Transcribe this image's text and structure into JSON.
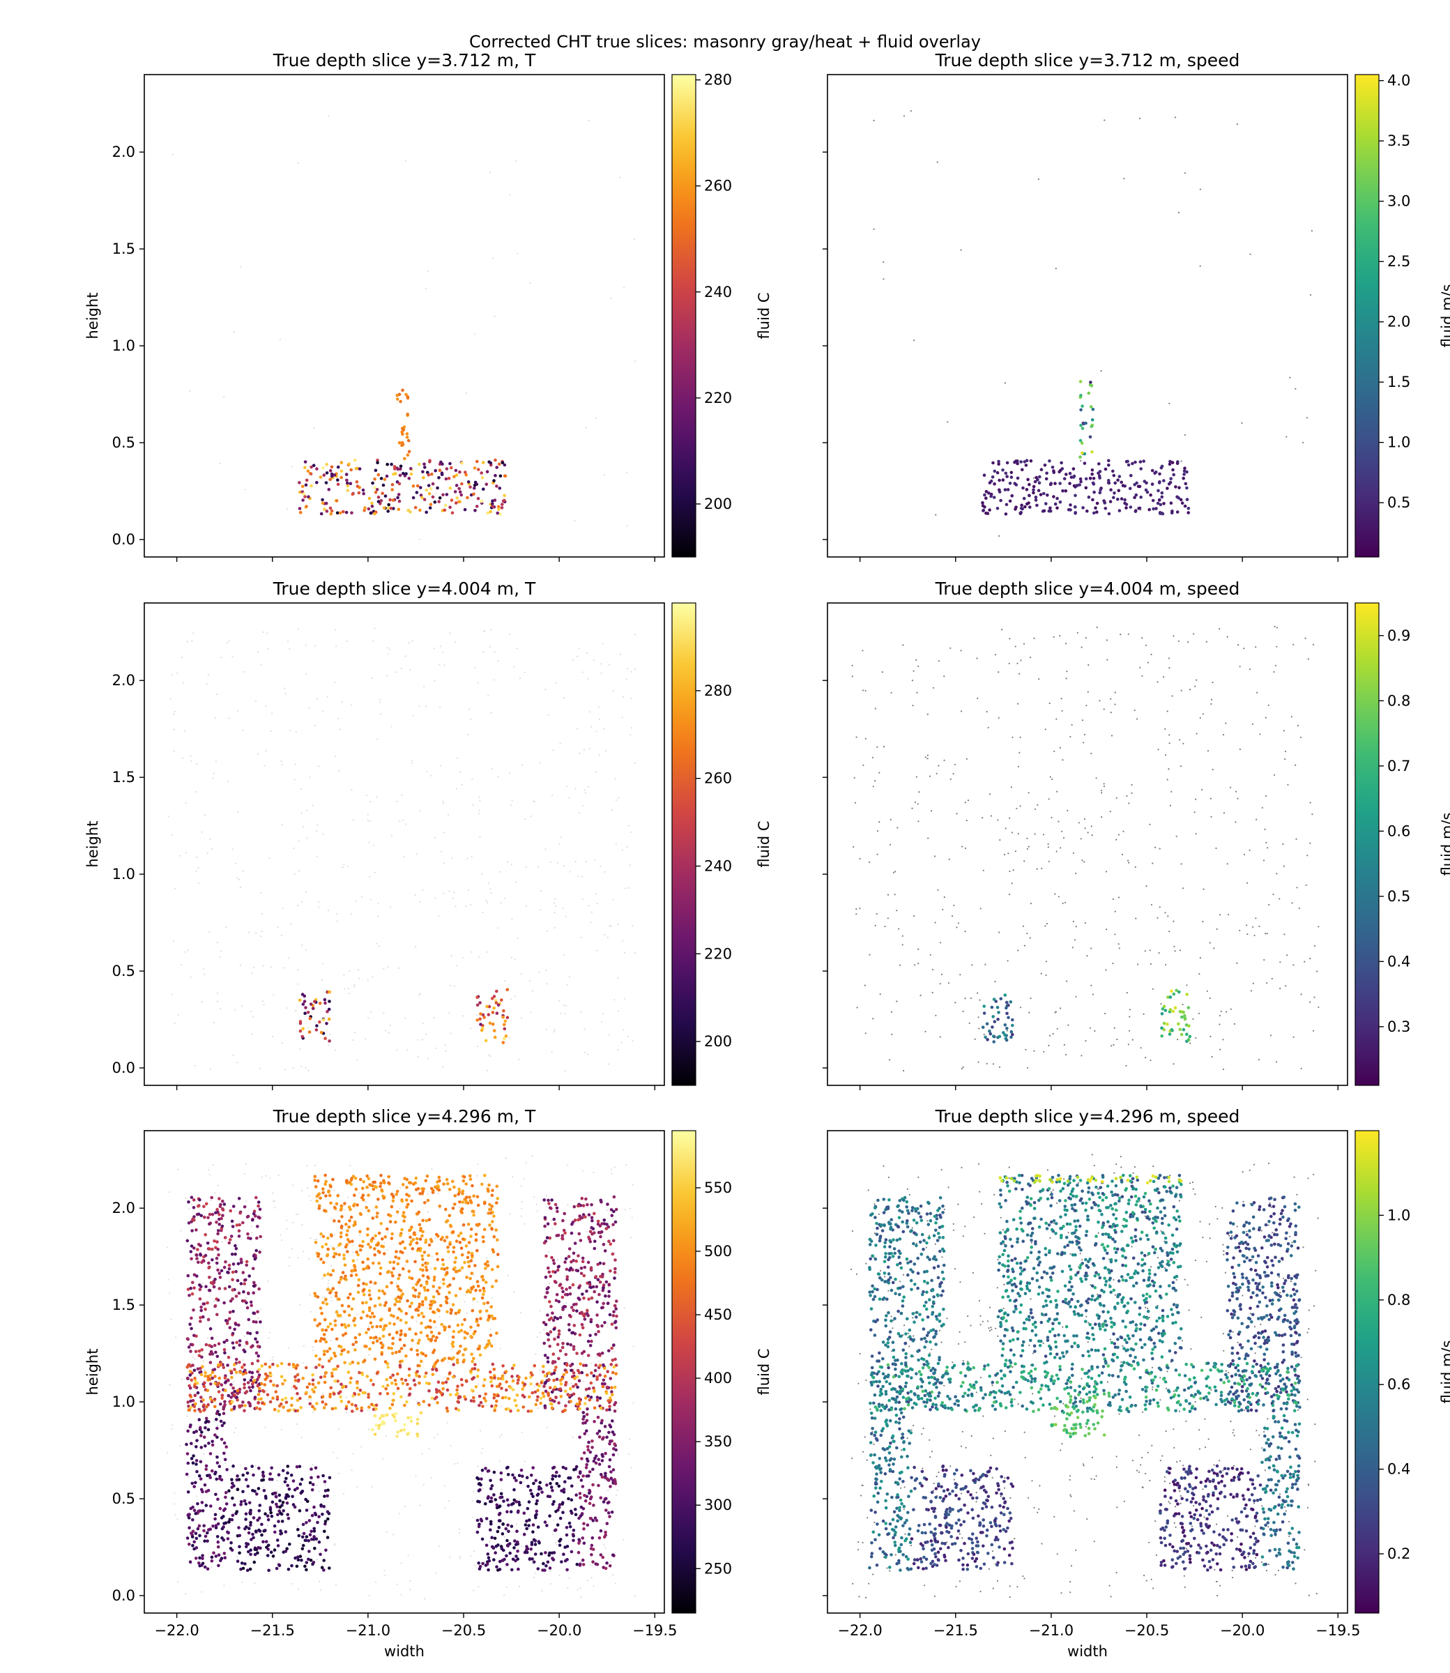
{
  "figure": {
    "suptitle": "Corrected CHT true slices: masonry gray/heat + fluid overlay"
  },
  "chart_data": [
    {
      "type": "scatter",
      "panel": "r0c0",
      "row": 0,
      "col": 0,
      "title": "True depth slice y=3.712 m, T",
      "ylabel": "height",
      "xlabel": "",
      "xlim": [
        -22.17,
        -19.45
      ],
      "ylim": [
        -0.09,
        2.4
      ],
      "xticks": [
        -22.0,
        -21.5,
        -21.0,
        -20.5,
        -20.0,
        -19.5
      ],
      "xtick_labels": [
        "−22.0",
        "−21.5",
        "−21.0",
        "−20.5",
        "−20.0",
        "−19.5"
      ],
      "show_xtick_labels": false,
      "yticks": [
        0.0,
        0.5,
        1.0,
        1.5,
        2.0
      ],
      "ytick_labels": [
        "0.0",
        "0.5",
        "1.0",
        "1.5",
        "2.0"
      ],
      "show_ytick_labels": true,
      "colorbar": {
        "label": "fluid C",
        "colormap": "inferno",
        "range": [
          190,
          281
        ],
        "ticks": [
          200,
          220,
          240,
          260,
          280
        ],
        "tick_labels": [
          "200",
          "220",
          "240",
          "260",
          "280"
        ]
      },
      "grid": false,
      "data_regions": [
        {
          "shape": "rect",
          "x": [
            -21.36,
            -20.28
          ],
          "y": [
            0.13,
            0.41
          ],
          "value_range": [
            195,
            280
          ]
        },
        {
          "shape": "rect",
          "x": [
            -20.85,
            -20.78
          ],
          "y": [
            0.41,
            0.79
          ],
          "value_range": [
            250,
            260
          ]
        }
      ]
    },
    {
      "type": "scatter",
      "panel": "r0c1",
      "row": 0,
      "col": 1,
      "title": "True depth slice y=3.712 m, speed",
      "ylabel": "",
      "xlabel": "",
      "xlim": [
        -22.17,
        -19.45
      ],
      "ylim": [
        -0.09,
        2.4
      ],
      "xticks": [
        -22.0,
        -21.5,
        -21.0,
        -20.5,
        -20.0,
        -19.5
      ],
      "xtick_labels": [
        "−22.0",
        "−21.5",
        "−21.0",
        "−20.5",
        "−20.0",
        "−19.5"
      ],
      "show_xtick_labels": false,
      "yticks": [
        0.0,
        0.5,
        1.0,
        1.5,
        2.0
      ],
      "ytick_labels": [
        "0.0",
        "0.5",
        "1.0",
        "1.5",
        "2.0"
      ],
      "show_ytick_labels": false,
      "colorbar": {
        "label": "fluid m/s",
        "colormap": "viridis",
        "range": [
          0.05,
          4.05
        ],
        "ticks": [
          0.5,
          1.0,
          1.5,
          2.0,
          2.5,
          3.0,
          3.5,
          4.0
        ],
        "tick_labels": [
          "0.5",
          "1.0",
          "1.5",
          "2.0",
          "2.5",
          "3.0",
          "3.5",
          "4.0"
        ]
      },
      "grid": false,
      "data_regions": [
        {
          "shape": "rect",
          "x": [
            -21.36,
            -20.28
          ],
          "y": [
            0.13,
            0.41
          ],
          "value_range": [
            0.2,
            0.6
          ]
        },
        {
          "shape": "rect",
          "x": [
            -20.85,
            -20.78
          ],
          "y": [
            0.41,
            0.82
          ],
          "value_range": [
            0.5,
            4.0
          ]
        }
      ]
    },
    {
      "type": "scatter",
      "panel": "r1c0",
      "row": 1,
      "col": 0,
      "title": "True depth slice y=4.004 m, T",
      "ylabel": "height",
      "xlabel": "",
      "xlim": [
        -22.17,
        -19.45
      ],
      "ylim": [
        -0.09,
        2.4
      ],
      "xticks": [
        -22.0,
        -21.5,
        -21.0,
        -20.5,
        -20.0,
        -19.5
      ],
      "xtick_labels": [
        "−22.0",
        "−21.5",
        "−21.0",
        "−20.5",
        "−20.0",
        "−19.5"
      ],
      "show_xtick_labels": false,
      "yticks": [
        0.0,
        0.5,
        1.0,
        1.5,
        2.0
      ],
      "ytick_labels": [
        "0.0",
        "0.5",
        "1.0",
        "1.5",
        "2.0"
      ],
      "show_ytick_labels": true,
      "colorbar": {
        "label": "fluid C",
        "colormap": "inferno",
        "range": [
          190,
          300
        ],
        "ticks": [
          200,
          220,
          240,
          260,
          280
        ],
        "tick_labels": [
          "200",
          "220",
          "240",
          "260",
          "280"
        ]
      },
      "grid": false,
      "data_regions": [
        {
          "shape": "rect",
          "x": [
            -21.36,
            -21.2
          ],
          "y": [
            0.13,
            0.41
          ],
          "value_range": [
            195,
            295
          ]
        },
        {
          "shape": "rect",
          "x": [
            -20.43,
            -20.27
          ],
          "y": [
            0.13,
            0.41
          ],
          "value_range": [
            225,
            295
          ]
        }
      ]
    },
    {
      "type": "scatter",
      "panel": "r1c1",
      "row": 1,
      "col": 1,
      "title": "True depth slice y=4.004 m, speed",
      "ylabel": "",
      "xlabel": "",
      "xlim": [
        -22.17,
        -19.45
      ],
      "ylim": [
        -0.09,
        2.4
      ],
      "xticks": [
        -22.0,
        -21.5,
        -21.0,
        -20.5,
        -20.0,
        -19.5
      ],
      "xtick_labels": [
        "−22.0",
        "−21.5",
        "−21.0",
        "−20.5",
        "−20.0",
        "−19.5"
      ],
      "show_xtick_labels": false,
      "yticks": [
        0.0,
        0.5,
        1.0,
        1.5,
        2.0
      ],
      "ytick_labels": [
        "0.0",
        "0.5",
        "1.0",
        "1.5",
        "2.0"
      ],
      "show_ytick_labels": false,
      "colorbar": {
        "label": "fluid m/s",
        "colormap": "viridis",
        "range": [
          0.21,
          0.95
        ],
        "ticks": [
          0.3,
          0.4,
          0.5,
          0.6,
          0.7,
          0.8,
          0.9
        ],
        "tick_labels": [
          "0.3",
          "0.4",
          "0.5",
          "0.6",
          "0.7",
          "0.8",
          "0.9"
        ]
      },
      "grid": false,
      "data_regions": [
        {
          "shape": "rect",
          "x": [
            -21.36,
            -21.2
          ],
          "y": [
            0.13,
            0.41
          ],
          "value_range": [
            0.3,
            0.6
          ]
        },
        {
          "shape": "rect",
          "x": [
            -20.43,
            -20.27
          ],
          "y": [
            0.13,
            0.41
          ],
          "value_range": [
            0.6,
            0.93
          ]
        }
      ]
    },
    {
      "type": "scatter",
      "panel": "r2c0",
      "row": 2,
      "col": 0,
      "title": "True depth slice y=4.296 m, T",
      "ylabel": "height",
      "xlabel": "width",
      "xlim": [
        -22.17,
        -19.45
      ],
      "ylim": [
        -0.09,
        2.4
      ],
      "xticks": [
        -22.0,
        -21.5,
        -21.0,
        -20.5,
        -20.0,
        -19.5
      ],
      "xtick_labels": [
        "−22.0",
        "−21.5",
        "−21.0",
        "−20.5",
        "−20.0",
        "−19.5"
      ],
      "show_xtick_labels": true,
      "yticks": [
        0.0,
        0.5,
        1.0,
        1.5,
        2.0
      ],
      "ytick_labels": [
        "0.0",
        "0.5",
        "1.0",
        "1.5",
        "2.0"
      ],
      "show_ytick_labels": true,
      "colorbar": {
        "label": "fluid C",
        "colormap": "inferno",
        "range": [
          215,
          595
        ],
        "ticks": [
          250,
          300,
          350,
          400,
          450,
          500,
          550
        ],
        "tick_labels": [
          "250",
          "300",
          "350",
          "400",
          "450",
          "500",
          "550"
        ]
      },
      "grid": false,
      "data_regions": [
        {
          "shape": "rect",
          "x": [
            -21.95,
            -21.56
          ],
          "y": [
            0.95,
            2.06
          ],
          "value_range": [
            300,
            420
          ]
        },
        {
          "shape": "rect",
          "x": [
            -21.28,
            -20.32
          ],
          "y": [
            1.2,
            2.17
          ],
          "value_range": [
            470,
            530
          ]
        },
        {
          "shape": "rect",
          "x": [
            -20.08,
            -19.7
          ],
          "y": [
            0.95,
            2.06
          ],
          "value_range": [
            300,
            420
          ]
        },
        {
          "shape": "rect",
          "x": [
            -21.95,
            -19.7
          ],
          "y": [
            0.95,
            1.2
          ],
          "value_range": [
            400,
            560
          ]
        },
        {
          "shape": "rect",
          "x": [
            -21.95,
            -21.73
          ],
          "y": [
            0.13,
            0.95
          ],
          "value_range": [
            260,
            350
          ]
        },
        {
          "shape": "rect",
          "x": [
            -21.73,
            -21.2
          ],
          "y": [
            0.13,
            0.67
          ],
          "value_range": [
            240,
            320
          ]
        },
        {
          "shape": "rect",
          "x": [
            -19.9,
            -19.7
          ],
          "y": [
            0.13,
            0.95
          ],
          "value_range": [
            300,
            380
          ]
        },
        {
          "shape": "rect",
          "x": [
            -20.43,
            -19.9
          ],
          "y": [
            0.13,
            0.67
          ],
          "value_range": [
            250,
            320
          ]
        },
        {
          "shape": "rect",
          "x": [
            -21.0,
            -20.72
          ],
          "y": [
            0.82,
            0.95
          ],
          "value_range": [
            560,
            590
          ]
        }
      ]
    },
    {
      "type": "scatter",
      "panel": "r2c1",
      "row": 2,
      "col": 1,
      "title": "True depth slice y=4.296 m, speed",
      "ylabel": "",
      "xlabel": "width",
      "xlim": [
        -22.17,
        -19.45
      ],
      "ylim": [
        -0.09,
        2.4
      ],
      "xticks": [
        -22.0,
        -21.5,
        -21.0,
        -20.5,
        -20.0,
        -19.5
      ],
      "xtick_labels": [
        "−22.0",
        "−21.5",
        "−21.0",
        "−20.5",
        "−20.0",
        "−19.5"
      ],
      "show_xtick_labels": true,
      "yticks": [
        0.0,
        0.5,
        1.0,
        1.5,
        2.0
      ],
      "ytick_labels": [
        "0.0",
        "0.5",
        "1.0",
        "1.5",
        "2.0"
      ],
      "show_ytick_labels": false,
      "colorbar": {
        "label": "fluid m/s",
        "colormap": "viridis",
        "range": [
          0.06,
          1.2
        ],
        "ticks": [
          0.2,
          0.4,
          0.6,
          0.8,
          1.0
        ],
        "tick_labels": [
          "0.2",
          "0.4",
          "0.6",
          "0.8",
          "1.0"
        ]
      },
      "grid": false,
      "data_regions": [
        {
          "shape": "rect",
          "x": [
            -21.95,
            -21.56
          ],
          "y": [
            0.95,
            2.06
          ],
          "value_range": [
            0.3,
            0.7
          ]
        },
        {
          "shape": "rect",
          "x": [
            -21.28,
            -20.32
          ],
          "y": [
            1.2,
            2.17
          ],
          "value_range": [
            0.3,
            0.8
          ]
        },
        {
          "shape": "rect",
          "x": [
            -20.08,
            -19.7
          ],
          "y": [
            0.95,
            2.06
          ],
          "value_range": [
            0.2,
            0.5
          ]
        },
        {
          "shape": "rect",
          "x": [
            -21.95,
            -19.7
          ],
          "y": [
            0.95,
            1.2
          ],
          "value_range": [
            0.4,
            0.9
          ]
        },
        {
          "shape": "rect",
          "x": [
            -21.95,
            -21.73
          ],
          "y": [
            0.13,
            0.95
          ],
          "value_range": [
            0.3,
            0.7
          ]
        },
        {
          "shape": "rect",
          "x": [
            -21.73,
            -21.2
          ],
          "y": [
            0.13,
            0.67
          ],
          "value_range": [
            0.15,
            0.4
          ]
        },
        {
          "shape": "rect",
          "x": [
            -19.9,
            -19.7
          ],
          "y": [
            0.13,
            0.95
          ],
          "value_range": [
            0.3,
            0.7
          ]
        },
        {
          "shape": "rect",
          "x": [
            -20.43,
            -19.9
          ],
          "y": [
            0.13,
            0.67
          ],
          "value_range": [
            0.1,
            0.35
          ]
        },
        {
          "shape": "rect",
          "x": [
            -21.28,
            -20.32
          ],
          "y": [
            2.13,
            2.17
          ],
          "value_range": [
            1.05,
            1.18
          ]
        },
        {
          "shape": "rect",
          "x": [
            -21.0,
            -20.72
          ],
          "y": [
            0.82,
            1.05
          ],
          "value_range": [
            0.8,
            1.0
          ]
        }
      ]
    }
  ]
}
